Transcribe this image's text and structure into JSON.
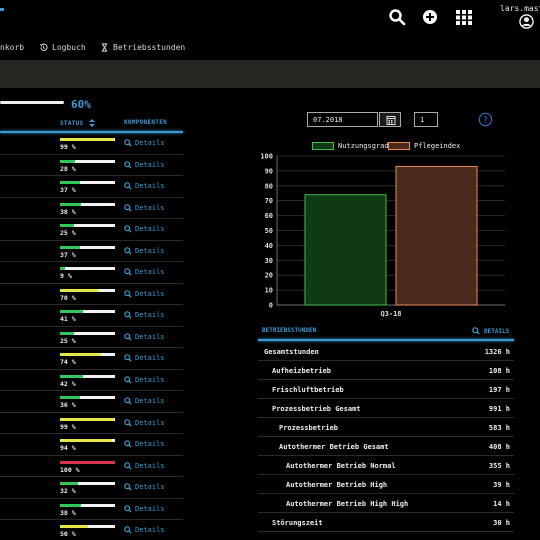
{
  "header": {
    "user": "lars.mast(",
    "icons": [
      "search-icon",
      "plus-circle-icon",
      "grid-icon",
      "user-circle-icon"
    ]
  },
  "nav": {
    "items": [
      {
        "label": "nkorb",
        "icon": "cart-icon"
      },
      {
        "label": "Logbuch",
        "icon": "history-icon"
      },
      {
        "label": "Betriebsstunden",
        "icon": "hourglass-icon"
      }
    ]
  },
  "overview": {
    "percent": "60%",
    "percent_value": 0.6
  },
  "table": {
    "col_status": "STATUS",
    "col_komponenten": "KOMPONENTEN",
    "details_label": "Details",
    "rows": [
      {
        "pct": "99 %",
        "v": 0.99,
        "color": "#e6e64a"
      },
      {
        "pct": "28 %",
        "v": 0.28,
        "color": "#2ec95a"
      },
      {
        "pct": "37 %",
        "v": 0.37,
        "color": "#2ec95a"
      },
      {
        "pct": "38 %",
        "v": 0.38,
        "color": "#2ec95a"
      },
      {
        "pct": "25 %",
        "v": 0.25,
        "color": "#2ec95a"
      },
      {
        "pct": "37 %",
        "v": 0.37,
        "color": "#2ec95a"
      },
      {
        "pct": "9 %",
        "v": 0.09,
        "color": "#2ec95a"
      },
      {
        "pct": "70 %",
        "v": 0.7,
        "color": "#e6e64a"
      },
      {
        "pct": "41 %",
        "v": 0.41,
        "color": "#2ec95a"
      },
      {
        "pct": "25 %",
        "v": 0.25,
        "color": "#2ec95a"
      },
      {
        "pct": "74 %",
        "v": 0.74,
        "color": "#e6e64a"
      },
      {
        "pct": "42 %",
        "v": 0.42,
        "color": "#2ec95a"
      },
      {
        "pct": "36 %",
        "v": 0.36,
        "color": "#2ec95a"
      },
      {
        "pct": "99 %",
        "v": 0.99,
        "color": "#e6e64a"
      },
      {
        "pct": "94 %",
        "v": 0.94,
        "color": "#e6e64a"
      },
      {
        "pct": "100 %",
        "v": 1.0,
        "color": "#d8334a"
      },
      {
        "pct": "32 %",
        "v": 0.32,
        "color": "#2ec95a"
      },
      {
        "pct": "38 %",
        "v": 0.38,
        "color": "#2ec95a"
      },
      {
        "pct": "50 %",
        "v": 0.5,
        "color": "#e6e64a"
      }
    ]
  },
  "filter": {
    "date": "07.2018",
    "number": "1"
  },
  "chart_data": {
    "type": "bar",
    "categories": [
      "Q3-18"
    ],
    "series": [
      {
        "name": "Nutzungsgrad",
        "values": [
          74
        ],
        "fill": "#0f3a14",
        "stroke": "#3fbf4a"
      },
      {
        "name": "Pflegeindex",
        "values": [
          93
        ],
        "fill": "#4a2a1c",
        "stroke": "#e88a5a"
      }
    ],
    "ylim": [
      0,
      100
    ],
    "yticks": [
      0,
      10,
      20,
      30,
      40,
      50,
      60,
      70,
      80,
      90,
      100
    ],
    "xlabel": "",
    "ylabel": "",
    "grid": true,
    "legend": "top"
  },
  "betriebsstunden": {
    "heading": "BETRIEBSSTUNDEN",
    "details": "DETAILS",
    "rows": [
      {
        "label": "Gesamtstunden",
        "value": "1326 h",
        "level": 0
      },
      {
        "label": "Aufheizbetrieb",
        "value": "108 h",
        "level": 1
      },
      {
        "label": "Frischluftbetrieb",
        "value": "197 h",
        "level": 1
      },
      {
        "label": "Prozessbetrieb Gesamt",
        "value": "991 h",
        "level": 1
      },
      {
        "label": "Prozessbetrieb",
        "value": "583 h",
        "level": 2
      },
      {
        "label": "Autothermer Betrieb Gesamt",
        "value": "408 h",
        "level": 2
      },
      {
        "label": "Autothermer Betrieb Normal",
        "value": "355 h",
        "level": 3
      },
      {
        "label": "Autothermer Betrieb High",
        "value": "39 h",
        "level": 3
      },
      {
        "label": "Autothermer Betrieb High High",
        "value": "14 h",
        "level": 3
      },
      {
        "label": "Störungszeit",
        "value": "30 h",
        "level": 1
      }
    ]
  }
}
